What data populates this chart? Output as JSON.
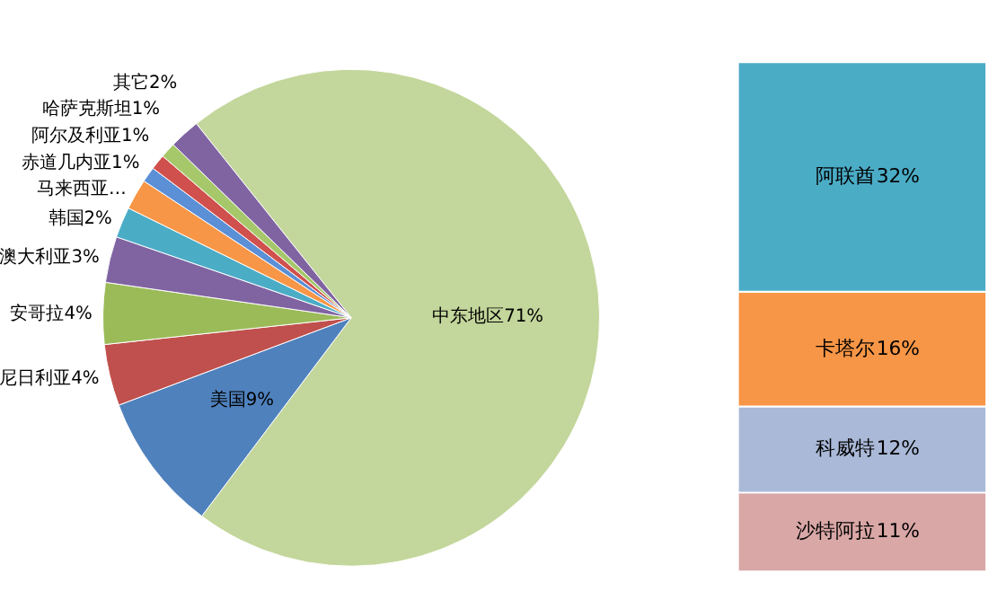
{
  "chart_data": [
    {
      "type": "pie",
      "categories": [
        "中东地区",
        "美国",
        "尼日利亚",
        "安哥拉",
        "澳大利亚",
        "韩国",
        "马来西亚…",
        "赤道几内亚",
        "阿尔及利亚",
        "哈萨克斯坦",
        "其它"
      ],
      "values": [
        71,
        9,
        4,
        4,
        3,
        2,
        2,
        1,
        1,
        1,
        2
      ],
      "value_labels": [
        "71%",
        "9%",
        "4%",
        "4%",
        "3%",
        "2%",
        null,
        "1%",
        "1%",
        "1%",
        "2%"
      ],
      "colors": [
        "#c3d69b",
        "#4f81bd",
        "#c0504d",
        "#9bbb59",
        "#8064a2",
        "#4bacc6",
        "#f79646",
        "#5b8fd6",
        "#d0504d",
        "#a6c86a",
        "#8064a2"
      ]
    },
    {
      "type": "bar",
      "stacked": true,
      "categories": [
        null
      ],
      "tick_labels": false,
      "series": [
        {
          "name": "沙特阿拉",
          "color": "#d9a7a6",
          "values": [
            11
          ],
          "value_labels": [
            "11%"
          ]
        },
        {
          "name": "科威特",
          "color": "#aab9d8",
          "values": [
            12
          ],
          "value_labels": [
            "12%"
          ]
        },
        {
          "name": "卡塔尔",
          "color": "#f79646",
          "values": [
            16
          ],
          "value_labels": [
            "16%"
          ]
        },
        {
          "name": "阿联酋",
          "color": "#4bacc6",
          "values": [
            32
          ],
          "value_labels": [
            "32%"
          ]
        }
      ]
    }
  ]
}
